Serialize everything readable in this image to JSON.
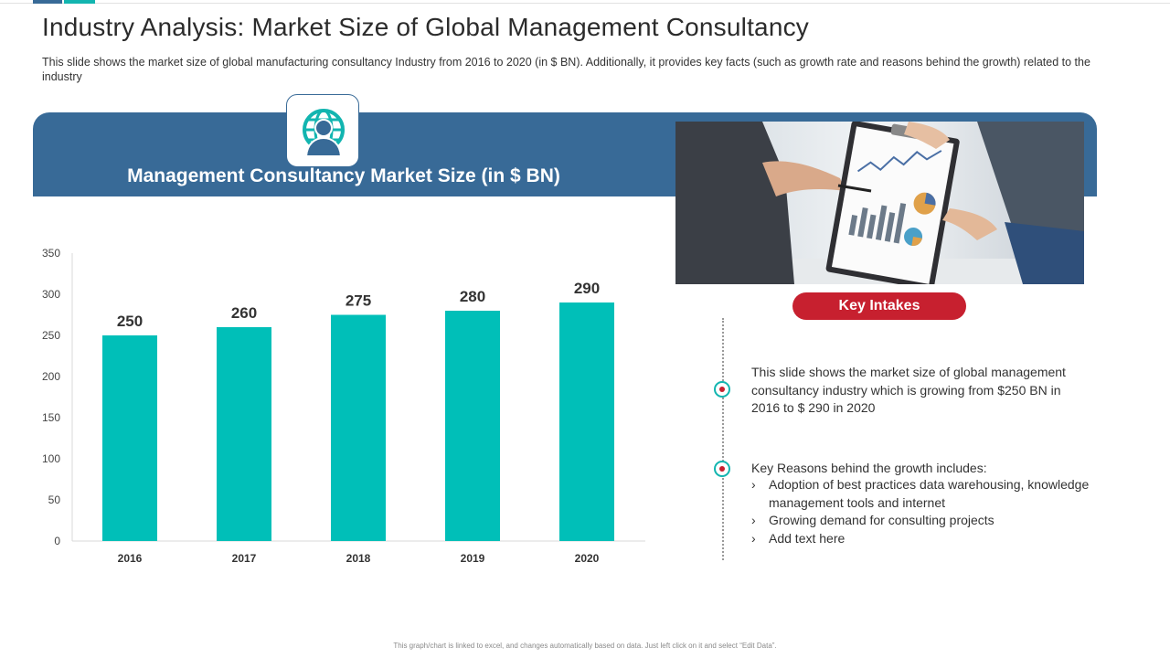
{
  "header": {
    "title": "Industry Analysis: Market Size of Global Management Consultancy",
    "subtitle": "This slide shows the market size of global manufacturing consultancy Industry from 2016 to 2020  (in $ BN). Additionally, it provides key facts (such as growth rate and reasons behind the growth) related to the industry",
    "accent_colors": [
      "#386a97",
      "#12b5b0"
    ]
  },
  "banner": {
    "title": "Management Consultancy Market Size (in $ BN)",
    "icon": "globe-person-icon",
    "color": "#386a97"
  },
  "photo": {
    "icon": "business-meeting-photo"
  },
  "chart_data": {
    "type": "bar",
    "categories": [
      "2016",
      "2017",
      "2018",
      "2019",
      "2020"
    ],
    "values": [
      250,
      260,
      275,
      280,
      290
    ],
    "ylim": [
      0,
      350
    ],
    "yticks": [
      0,
      50,
      100,
      150,
      200,
      250,
      300,
      350
    ],
    "bar_color": "#00bfb8",
    "grid": false,
    "xlabel": "",
    "ylabel": ""
  },
  "key_intakes": {
    "label": "Key Intakes",
    "color": "#c7202f",
    "point1": {
      "lines": [
        "This slide shows the market  size of global management",
        "consultancy industry which is growing from $250 BN in",
        "2016 to $ 290 in 2020"
      ]
    },
    "point2": {
      "heading": "Key Reasons behind the growth includes:",
      "bullets": [
        "Adoption  of best practices data warehousing, knowledge management tools and internet",
        "Growing demand for consulting projects",
        "Add text here"
      ]
    }
  },
  "footer": {
    "note": "This graph/chart is linked to excel, and changes automatically based on data. Just left click on it and select “Edit Data”."
  }
}
